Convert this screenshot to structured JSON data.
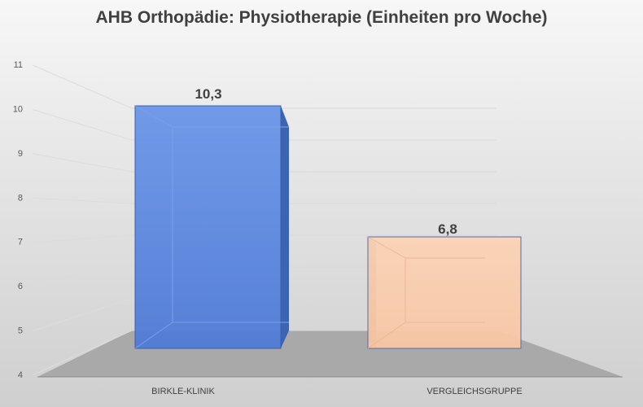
{
  "chart_data": {
    "type": "bar",
    "title": "AHB Orthopädie: Physiotherapie (Einheiten pro Woche)",
    "categories": [
      "BIRKLE-KLINIK",
      "VERGLEICHSGRUPPE"
    ],
    "values": [
      10.3,
      6.8
    ],
    "data_labels": [
      "10,3",
      "6,8"
    ],
    "ylim": [
      4,
      11
    ],
    "yticks": [
      "4",
      "5",
      "6",
      "7",
      "8",
      "9",
      "10",
      "11"
    ],
    "xlabel": "",
    "ylabel": "",
    "grid": true,
    "three_d": true,
    "colors": [
      "#4f7ad8",
      "#f9cdb0"
    ]
  }
}
